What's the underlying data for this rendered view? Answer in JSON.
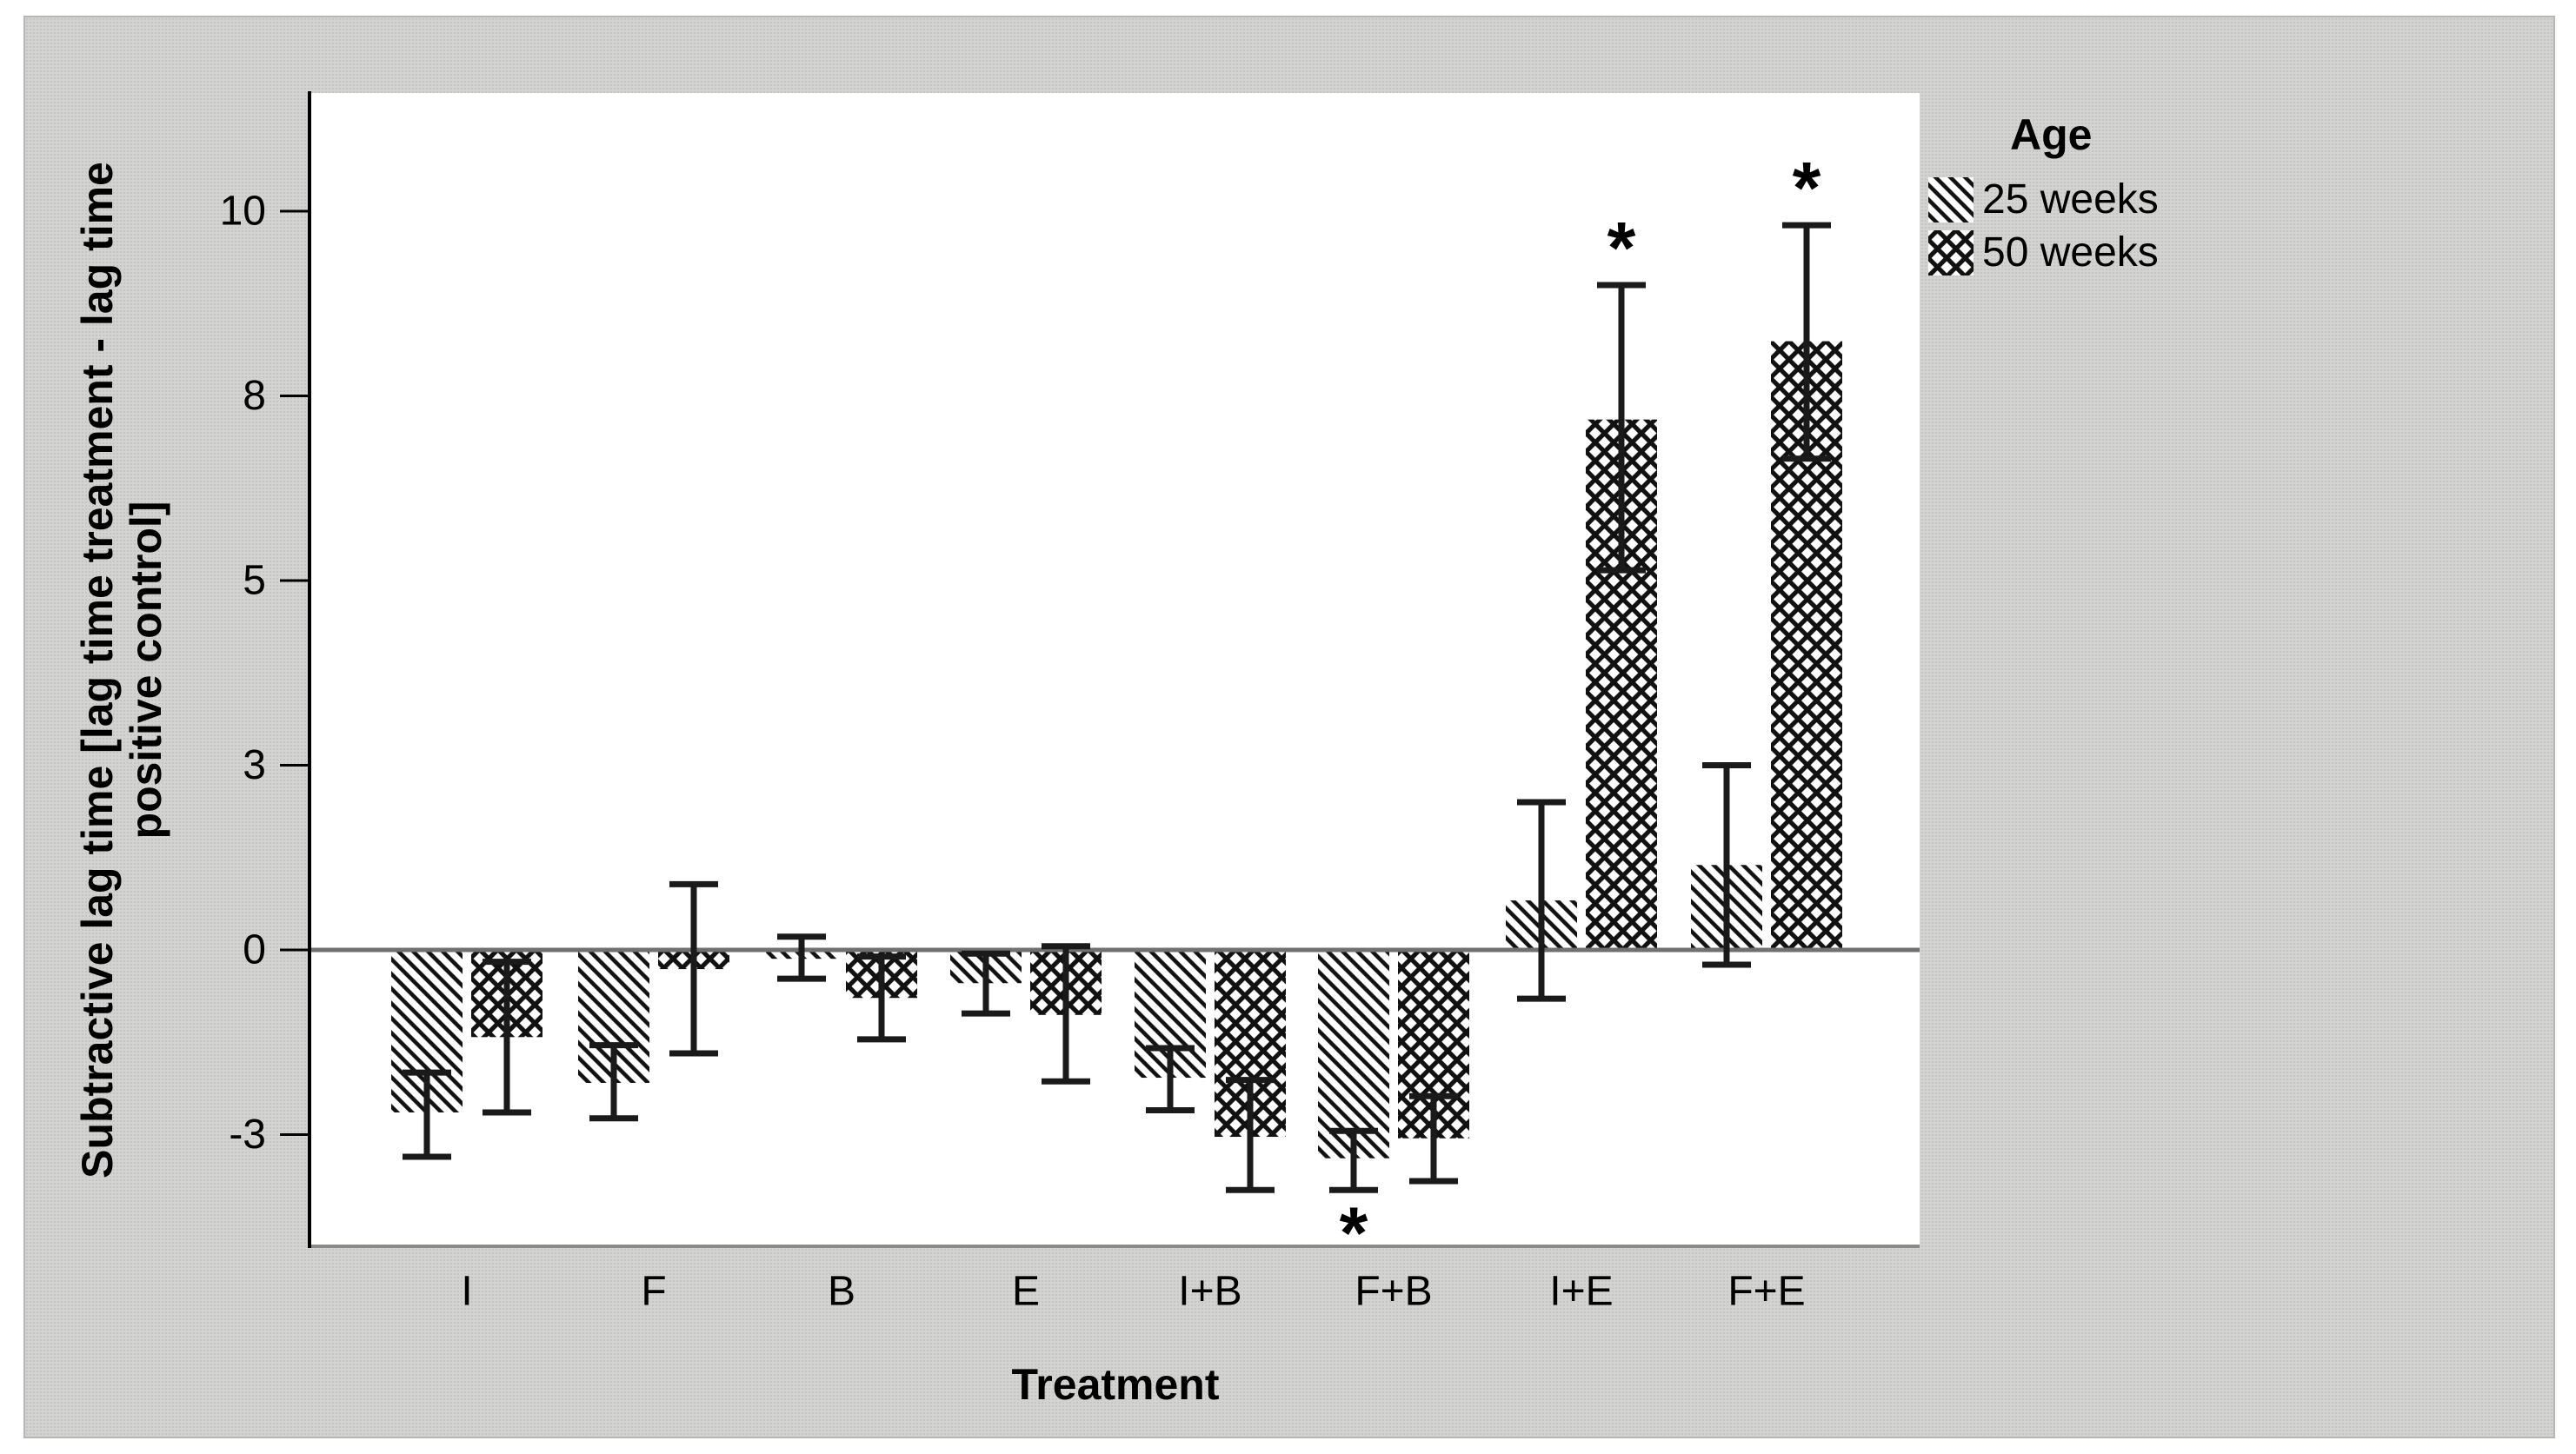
{
  "chart_data": {
    "type": "bar",
    "title": "",
    "xlabel": "Treatment",
    "ylabel": "Subtractive lag time [lag time treatment - lag time positive control]",
    "ylabel_lines": [
      "Subtractive lag time [lag time treatment - lag time",
      "positive control]"
    ],
    "categories": [
      "I",
      "F",
      "B",
      "E",
      "I+B",
      "F+B",
      "I+E",
      "F+E"
    ],
    "y_axis": {
      "ticks": [
        {
          "label": "10",
          "value": 10
        },
        {
          "label": "8",
          "value": 7.5
        },
        {
          "label": "5",
          "value": 5
        },
        {
          "label": "3",
          "value": 2.5
        },
        {
          "label": "0",
          "value": 0
        },
        {
          "label": "-3",
          "value": -2.5
        }
      ],
      "range": [
        -4.0,
        11.6
      ],
      "grid": false
    },
    "series": [
      {
        "name": "25 weeks",
        "pattern": "diagonal-hatch",
        "values": [
          -2.2,
          -1.8,
          -0.12,
          -0.45,
          -1.73,
          -2.82,
          0.67,
          1.15
        ],
        "err_low": [
          -2.8,
          -2.28,
          -0.39,
          -0.86,
          -2.17,
          -3.25,
          -0.66,
          -0.2
        ],
        "err_high": [
          -1.66,
          -1.29,
          0.18,
          -0.05,
          -1.33,
          -2.45,
          2.0,
          2.5
        ],
        "significant": [
          false,
          false,
          false,
          false,
          false,
          true,
          false,
          false
        ]
      },
      {
        "name": "50 weeks",
        "pattern": "cross-hatch",
        "values": [
          -1.18,
          -0.26,
          -0.65,
          -0.88,
          -2.53,
          -2.55,
          7.18,
          8.24
        ],
        "err_low": [
          -2.2,
          -1.4,
          -1.21,
          -1.78,
          -3.25,
          -3.13,
          5.14,
          6.65
        ],
        "err_high": [
          -0.16,
          0.89,
          -0.09,
          0.05,
          -1.76,
          -1.98,
          9.0,
          9.81
        ],
        "significant": [
          false,
          false,
          false,
          false,
          false,
          false,
          true,
          true
        ]
      }
    ],
    "legend": {
      "title": "Age",
      "position": "right",
      "entries": [
        "25 weeks",
        "50 weeks"
      ]
    },
    "significance_marker": "*"
  },
  "colors": {
    "page_background": "#ffffff",
    "panel_background": "#d3d3d1",
    "plot_background": "#ffffff",
    "axis_line": "#000000",
    "zero_line": "#707070",
    "bottom_axis_line": "#8a8a8a",
    "error_bar": "#1a1a1a",
    "hatch": "#111111",
    "text": "#000000"
  }
}
